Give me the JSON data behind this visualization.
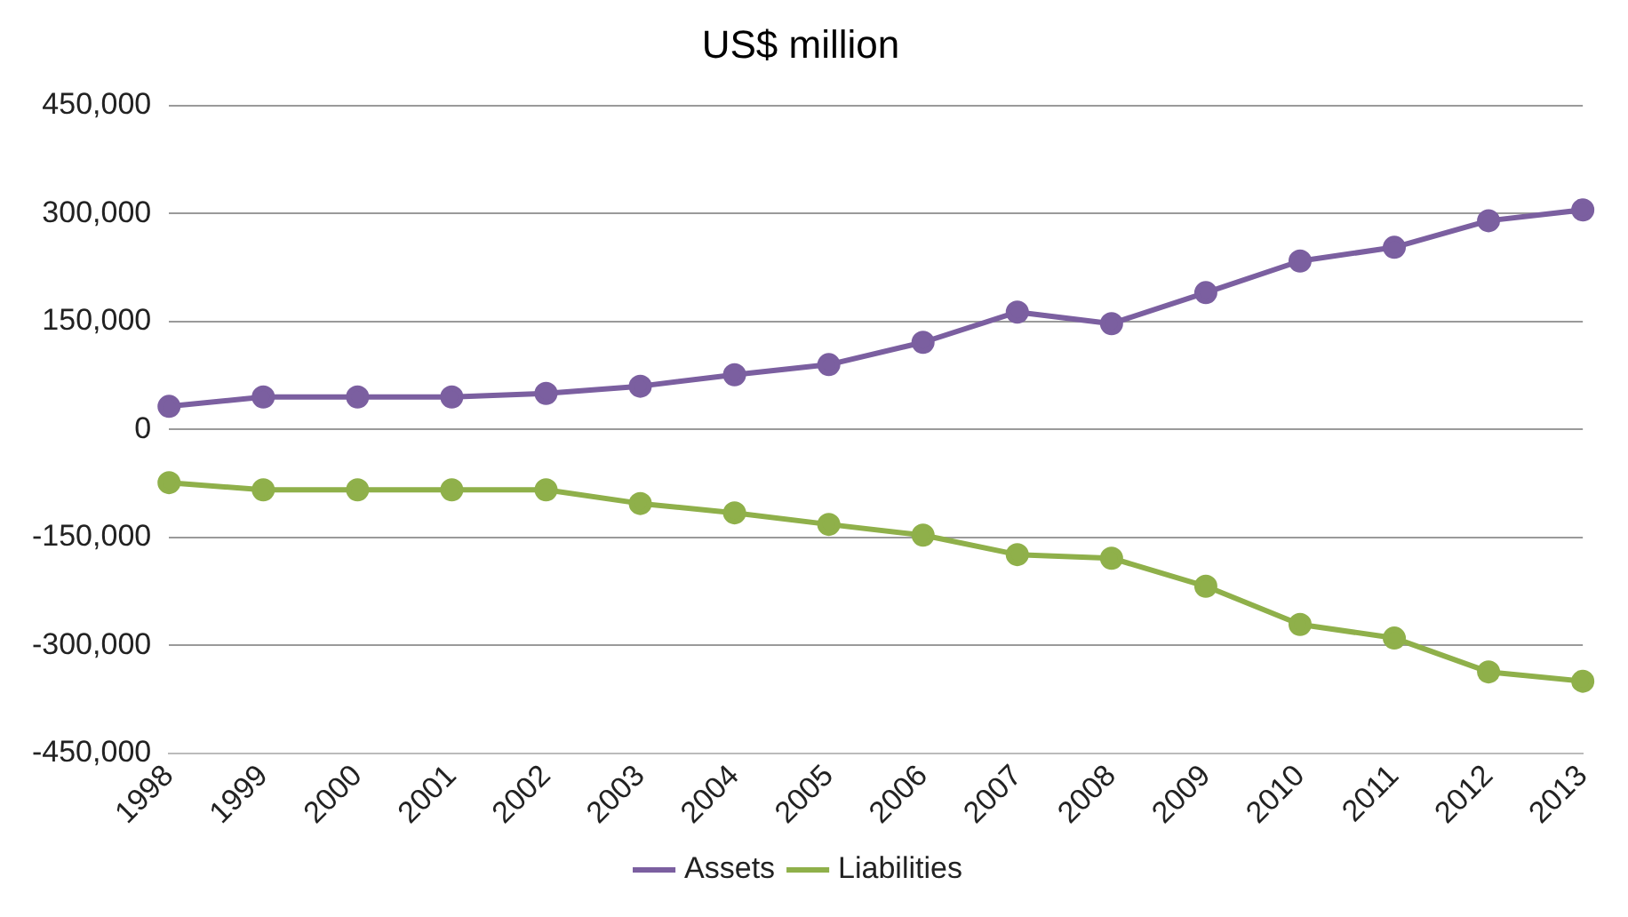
{
  "chart_data": {
    "type": "line",
    "title": "US$ million",
    "categories": [
      "1998",
      "1999",
      "2000",
      "2001",
      "2002",
      "2003",
      "2004",
      "2005",
      "2006",
      "2007",
      "2008",
      "2009",
      "2010",
      "2011",
      "2012",
      "2013"
    ],
    "series": [
      {
        "name": "Assets",
        "color": "#7b5fa0",
        "values": [
          32000,
          45000,
          45000,
          45000,
          50000,
          60000,
          76000,
          90000,
          121000,
          163000,
          147000,
          190000,
          234000,
          253000,
          290000,
          305000
        ]
      },
      {
        "name": "Liabilities",
        "color": "#8fb04a",
        "values": [
          -74000,
          -84000,
          -84000,
          -84000,
          -84000,
          -103000,
          -116000,
          -132000,
          -147000,
          -174000,
          -179000,
          -218000,
          -271000,
          -290000,
          -337000,
          -350000
        ]
      }
    ],
    "ylim": [
      -450000,
      450000
    ],
    "yticks": [
      {
        "value": -450000,
        "label": "-450,000"
      },
      {
        "value": -300000,
        "label": "-300,000"
      },
      {
        "value": -150000,
        "label": "-150,000"
      },
      0,
      {
        "value": 150000,
        "label": "150,000"
      },
      {
        "value": 300000,
        "label": "300,000"
      },
      {
        "value": 450000,
        "label": "450,000"
      }
    ],
    "grid": "y",
    "legend": "bottom",
    "marker": "circle",
    "line_style": "solid"
  }
}
